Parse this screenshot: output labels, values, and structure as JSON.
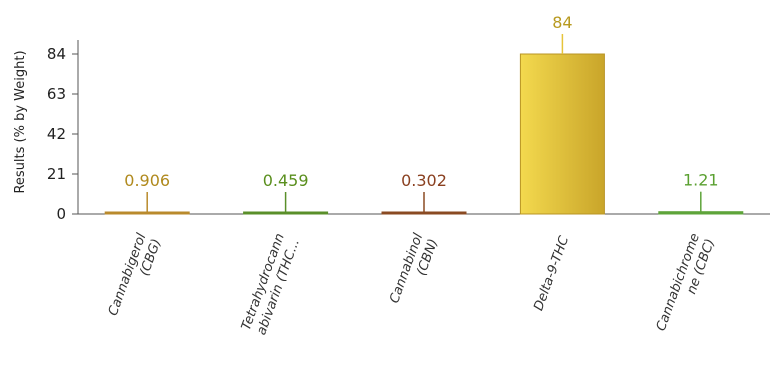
{
  "chart_data": {
    "type": "bar",
    "title": "",
    "xlabel": "",
    "ylabel": "Results (% by Weight)",
    "ylim": [
      0,
      84
    ],
    "yticks": [
      0,
      21,
      42,
      63,
      84
    ],
    "grid": false,
    "categories": [
      [
        "Cannabigerol",
        "(CBG)"
      ],
      [
        "Tetrahydrocann",
        "abivarin (THC..."
      ],
      [
        "Cannabinol",
        "(CBN)"
      ],
      [
        "Delta-9-THC"
      ],
      [
        "Cannabichrome",
        "ne (CBC)"
      ]
    ],
    "values": [
      0.906,
      0.459,
      0.302,
      84,
      1.21
    ],
    "value_labels": [
      "0.906",
      "0.459",
      "0.302",
      "84",
      "1.21"
    ],
    "colors": [
      "#b98a2c",
      "#5a8f2a",
      "#8a4a22",
      "#e6c43a",
      "#5ea43a"
    ],
    "label_colors": [
      "#b08a1e",
      "#5a8f1e",
      "#8a4020",
      "#b89a20",
      "#5aa030"
    ]
  }
}
